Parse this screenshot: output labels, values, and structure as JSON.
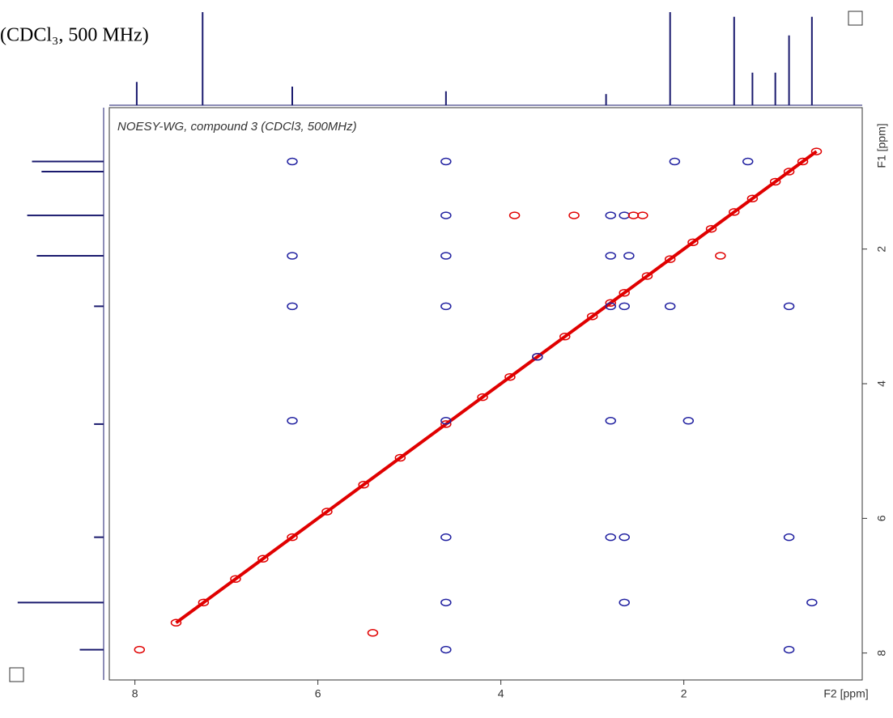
{
  "chart_data": {
    "type": "scatter",
    "title": "(CDCl₃, 500 MHz)",
    "annotation": "NOESY-WG, compound 3 (CDCl3, 500MHz)",
    "xlabel": "F2 [ppm]",
    "ylabel": "F1 [ppm]",
    "xlim": [
      8.28,
      0.05
    ],
    "ylim": [
      -0.1,
      8.4
    ],
    "xticks": [
      8,
      6,
      4,
      2
    ],
    "yticks": [
      2,
      4,
      6,
      8
    ],
    "series": [
      {
        "color": "#e00000",
        "line": true,
        "x": [
          7.55,
          7.25,
          6.9,
          6.6,
          6.28,
          5.9,
          5.5,
          5.1,
          4.6,
          4.2,
          3.9,
          3.6,
          3.3,
          3.0,
          2.8,
          2.65,
          2.4,
          2.15,
          1.9,
          1.7,
          1.45,
          1.25,
          1.0,
          0.85,
          0.7,
          0.55
        ],
        "y": [
          7.55,
          7.25,
          6.9,
          6.6,
          6.28,
          5.9,
          5.5,
          5.1,
          4.6,
          4.2,
          3.9,
          3.6,
          3.3,
          3.0,
          2.8,
          2.65,
          2.4,
          2.15,
          1.9,
          1.7,
          1.45,
          1.25,
          1.0,
          0.85,
          0.7,
          0.55
        ]
      },
      {
        "color": "#2020a0",
        "x": [
          6.28,
          4.6,
          2.1,
          1.3,
          4.6,
          2.8,
          2.65,
          6.28,
          4.6,
          2.8,
          2.6,
          6.28,
          4.6,
          2.8,
          2.65,
          2.15,
          0.85,
          3.6,
          6.28,
          4.6,
          2.8,
          1.95,
          4.6,
          2.8,
          2.65,
          0.85,
          4.6,
          2.65,
          0.6,
          4.6,
          0.85
        ],
        "y": [
          0.7,
          0.7,
          0.7,
          0.7,
          1.5,
          1.5,
          1.5,
          2.1,
          2.1,
          2.1,
          2.1,
          2.85,
          2.85,
          2.85,
          2.85,
          2.85,
          2.85,
          3.6,
          4.55,
          4.55,
          4.55,
          4.55,
          6.28,
          6.28,
          6.28,
          6.28,
          7.25,
          7.25,
          7.25,
          7.95,
          7.95
        ]
      },
      {
        "color": "#e00000",
        "x": [
          3.85,
          3.2,
          2.55,
          2.45,
          1.6,
          5.4,
          7.95
        ],
        "y": [
          1.5,
          1.5,
          1.5,
          1.5,
          2.1,
          7.7,
          7.95
        ]
      }
    ],
    "top_projection": {
      "color": "#1a1a6e",
      "x": [
        7.98,
        7.26,
        6.28,
        4.6,
        2.85,
        2.15,
        1.45,
        1.25,
        1.0,
        0.85,
        0.6
      ],
      "heights": [
        25,
        100,
        20,
        15,
        12,
        100,
        95,
        35,
        35,
        75,
        95
      ]
    },
    "left_projection": {
      "color": "#1a1a6e",
      "y": [
        0.7,
        0.85,
        1.5,
        2.1,
        2.85,
        4.6,
        6.28,
        7.25,
        7.95
      ],
      "heights": [
        75,
        65,
        80,
        70,
        10,
        10,
        10,
        90,
        25
      ]
    }
  }
}
